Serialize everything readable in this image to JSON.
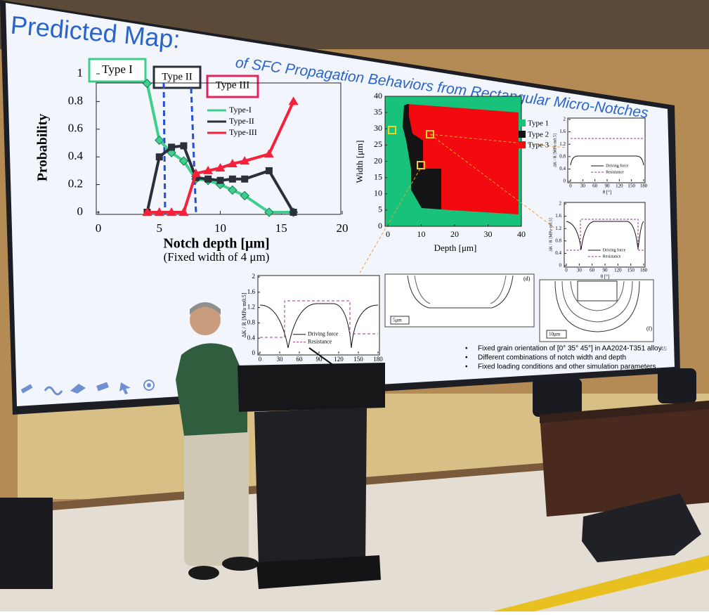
{
  "slide": {
    "title": "Predicted Map:",
    "subtitle": "of SFC Propagation Behaviors from Rectangular Micro-Notches",
    "page_number": "45",
    "type_boxes": [
      "Type I",
      "Type II",
      "Type III"
    ],
    "bullets": [
      "Fixed grain orientation of [0° 35° 45°] in AA2024-T351 alloy",
      "Different combinations of notch width and depth",
      "Fixed loading conditions and other simulation parameters"
    ]
  },
  "main_chart": {
    "type": "line",
    "y_label": "Probability",
    "x_label": "Notch depth [μm]",
    "note": "(Fixed width of 4 μm)",
    "x": [
      4,
      5,
      6,
      7,
      8,
      9,
      10,
      11,
      12,
      14,
      16
    ],
    "series": [
      {
        "name": "Type-I",
        "color": "#3ecf8e",
        "values": [
          0.93,
          0.52,
          0.43,
          0.37,
          0.24,
          0.23,
          0.2,
          0.16,
          0.12,
          0,
          0
        ]
      },
      {
        "name": "Type-II",
        "color": "#2b2f3a",
        "values": [
          0,
          0.4,
          0.47,
          0.48,
          0.25,
          0.24,
          0.23,
          0.24,
          0.24,
          0.3,
          0
        ]
      },
      {
        "name": "Type-III",
        "color": "#f5203a",
        "values": [
          0,
          0,
          0,
          0,
          0.28,
          0.3,
          0.32,
          0.35,
          0.37,
          0.42,
          0.8
        ]
      }
    ],
    "xlim": [
      0,
      20
    ],
    "xticks": [
      0,
      5,
      10,
      15,
      20
    ],
    "ylim": [
      0,
      1
    ],
    "yticks": [
      0,
      0.2,
      0.4,
      0.6,
      0.8,
      1
    ]
  },
  "map_chart": {
    "y_label": "Width [μm]",
    "x_label": "Depth [μm]",
    "legend": [
      "Type 1",
      "Type 2",
      "Type 3"
    ],
    "xlim": [
      0,
      40
    ],
    "xticks": [
      0,
      10,
      20,
      30,
      40
    ],
    "ylim": [
      0,
      40
    ],
    "yticks": [
      0,
      5,
      10,
      15,
      20,
      25,
      30,
      35,
      40
    ]
  },
  "small_charts": {
    "legend": [
      "Driving force",
      "Resistance"
    ],
    "y_label": "ΔK / R [MPa·m0.5]",
    "x_label": "θ [°]",
    "xlim": [
      0,
      180
    ],
    "xticks": [
      0,
      30,
      60,
      90,
      120,
      150,
      180
    ],
    "ylim": [
      0,
      2
    ],
    "yticks": [
      0,
      0.4,
      0.8,
      1.2,
      1.6,
      2
    ]
  },
  "panel_labels": {
    "d": "(d)",
    "f": "(f)",
    "scale_small": "5μm",
    "scale_large": "10μm"
  }
}
